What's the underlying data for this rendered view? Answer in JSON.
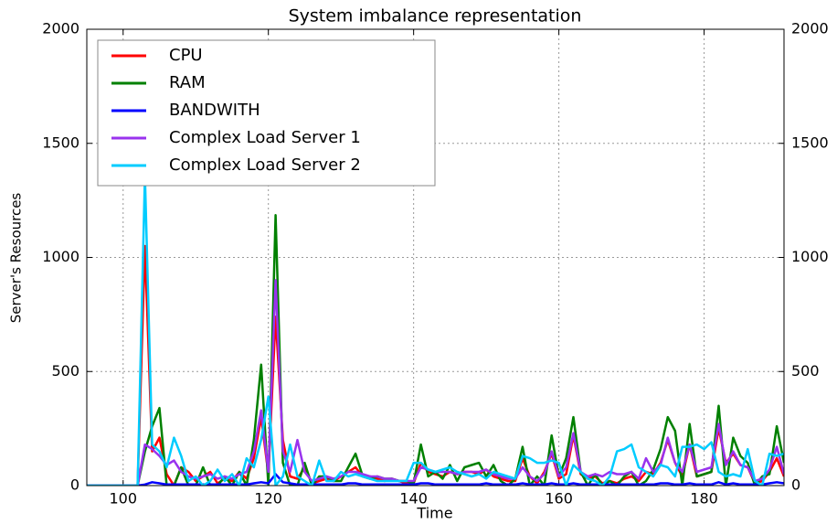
{
  "chart_data": {
    "type": "line",
    "title": "System imbalance representation",
    "x_label": "Time",
    "y_label": "Server's Resources",
    "x": [
      95,
      96,
      97,
      98,
      99,
      100,
      101,
      102,
      103,
      104,
      105,
      106,
      107,
      108,
      109,
      110,
      111,
      112,
      113,
      114,
      115,
      116,
      117,
      118,
      119,
      120,
      121,
      122,
      123,
      124,
      125,
      126,
      127,
      128,
      129,
      130,
      131,
      132,
      133,
      134,
      135,
      136,
      137,
      138,
      139,
      140,
      141,
      142,
      143,
      144,
      145,
      146,
      147,
      148,
      149,
      150,
      151,
      152,
      153,
      154,
      155,
      156,
      157,
      158,
      159,
      160,
      161,
      162,
      163,
      164,
      165,
      166,
      167,
      168,
      169,
      170,
      171,
      172,
      173,
      174,
      175,
      176,
      177,
      178,
      179,
      180,
      181,
      182,
      183,
      184,
      185,
      186,
      187,
      188,
      189,
      190,
      191
    ],
    "series": [
      {
        "name": "CPU",
        "color": "#ff0000",
        "values": [
          0,
          0,
          0,
          0,
          0,
          0,
          0,
          0,
          1050,
          150,
          210,
          50,
          0,
          80,
          60,
          20,
          40,
          60,
          10,
          30,
          20,
          60,
          30,
          120,
          300,
          50,
          740,
          200,
          40,
          30,
          80,
          10,
          20,
          30,
          20,
          40,
          60,
          80,
          40,
          40,
          30,
          20,
          30,
          20,
          10,
          10,
          100,
          60,
          50,
          40,
          60,
          50,
          60,
          60,
          50,
          70,
          40,
          30,
          20,
          20,
          120,
          40,
          10,
          60,
          140,
          30,
          50,
          220,
          50,
          30,
          40,
          10,
          20,
          10,
          30,
          40,
          20,
          60,
          50,
          100,
          200,
          100,
          40,
          180,
          40,
          50,
          60,
          250,
          100,
          140,
          90,
          80,
          10,
          20,
          60,
          120,
          40
        ]
      },
      {
        "name": "RAM",
        "color": "#008000",
        "values": [
          0,
          0,
          0,
          0,
          0,
          0,
          0,
          0,
          150,
          260,
          340,
          0,
          0,
          80,
          0,
          0,
          80,
          0,
          0,
          40,
          0,
          60,
          0,
          200,
          530,
          0,
          1185,
          100,
          0,
          0,
          100,
          0,
          40,
          40,
          20,
          20,
          80,
          140,
          40,
          30,
          40,
          30,
          30,
          20,
          20,
          10,
          180,
          40,
          60,
          30,
          90,
          20,
          80,
          90,
          100,
          40,
          90,
          20,
          0,
          30,
          170,
          0,
          40,
          0,
          220,
          40,
          120,
          300,
          60,
          0,
          50,
          0,
          20,
          0,
          40,
          60,
          0,
          20,
          70,
          160,
          300,
          240,
          0,
          270,
          40,
          50,
          60,
          350,
          0,
          210,
          130,
          100,
          0,
          40,
          50,
          260,
          100
        ]
      },
      {
        "name": "BANDWITH",
        "color": "#0000ff",
        "values": [
          0,
          0,
          0,
          0,
          0,
          0,
          0,
          0,
          5,
          15,
          10,
          5,
          5,
          5,
          5,
          5,
          5,
          5,
          5,
          5,
          5,
          5,
          5,
          10,
          15,
          10,
          50,
          15,
          10,
          5,
          5,
          5,
          5,
          5,
          5,
          5,
          10,
          10,
          5,
          5,
          5,
          5,
          5,
          5,
          5,
          5,
          10,
          10,
          5,
          5,
          5,
          5,
          5,
          5,
          5,
          10,
          5,
          5,
          5,
          5,
          10,
          5,
          5,
          5,
          10,
          5,
          5,
          10,
          5,
          5,
          5,
          5,
          5,
          5,
          5,
          5,
          5,
          5,
          5,
          10,
          10,
          5,
          5,
          10,
          5,
          5,
          5,
          15,
          5,
          10,
          5,
          5,
          5,
          5,
          10,
          15,
          10
        ]
      },
      {
        "name": "Complex Load Server 1",
        "color": "#9933ee",
        "values": [
          0,
          0,
          0,
          0,
          0,
          0,
          0,
          0,
          180,
          160,
          130,
          90,
          110,
          60,
          40,
          30,
          40,
          50,
          30,
          40,
          30,
          50,
          60,
          150,
          330,
          60,
          900,
          150,
          60,
          200,
          60,
          20,
          30,
          40,
          30,
          40,
          60,
          60,
          50,
          40,
          40,
          30,
          30,
          20,
          20,
          20,
          80,
          70,
          60,
          60,
          60,
          50,
          60,
          60,
          60,
          70,
          50,
          40,
          30,
          30,
          80,
          40,
          20,
          50,
          150,
          40,
          80,
          230,
          60,
          40,
          50,
          40,
          60,
          50,
          50,
          60,
          30,
          120,
          60,
          90,
          210,
          100,
          60,
          180,
          60,
          70,
          80,
          270,
          90,
          150,
          90,
          80,
          20,
          30,
          70,
          170,
          50
        ]
      },
      {
        "name": "Complex Load Server 2",
        "color": "#00ccff",
        "values": [
          0,
          0,
          0,
          0,
          0,
          0,
          0,
          0,
          1360,
          180,
          150,
          80,
          210,
          130,
          20,
          40,
          0,
          20,
          70,
          20,
          50,
          0,
          120,
          80,
          200,
          390,
          0,
          40,
          180,
          40,
          20,
          0,
          110,
          20,
          20,
          60,
          40,
          50,
          40,
          30,
          20,
          20,
          20,
          20,
          20,
          100,
          100,
          70,
          60,
          70,
          80,
          60,
          50,
          40,
          50,
          30,
          60,
          50,
          40,
          30,
          130,
          120,
          100,
          100,
          110,
          100,
          0,
          90,
          60,
          30,
          20,
          0,
          40,
          150,
          160,
          180,
          80,
          60,
          40,
          90,
          80,
          40,
          170,
          170,
          180,
          160,
          190,
          60,
          40,
          50,
          40,
          160,
          20,
          0,
          140,
          130,
          140
        ]
      }
    ],
    "xlim": [
      95,
      191
    ],
    "xticks": [
      100,
      120,
      140,
      160,
      180
    ],
    "ylim": [
      0,
      2000
    ],
    "yticks": [
      0,
      500,
      1000,
      1500,
      2000
    ],
    "y2lim": [
      0,
      2000
    ],
    "y2ticks": [
      0,
      500,
      1000,
      1500,
      2000
    ],
    "grid": true,
    "legend": "upper-left"
  }
}
